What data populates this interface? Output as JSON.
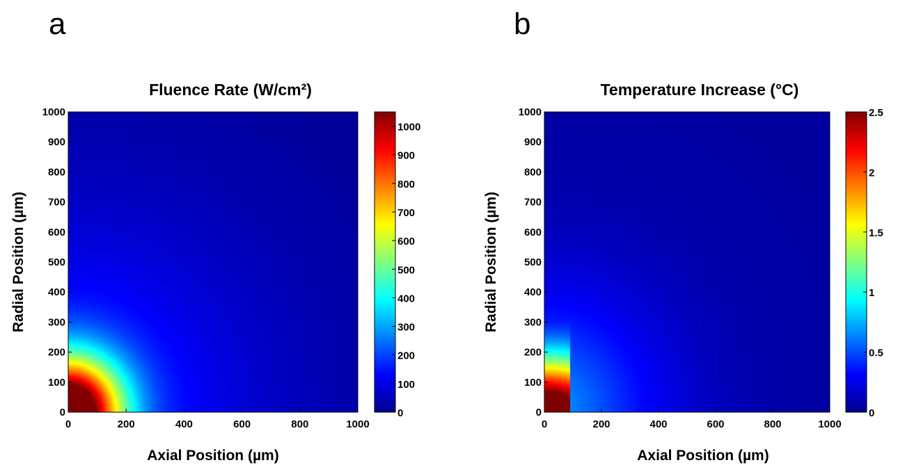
{
  "panels": [
    {
      "letter": "a",
      "chart_data": {
        "type": "heatmap",
        "title": "Fluence Rate (W/cm²)",
        "xlabel": "Axial Position (µm)",
        "ylabel": "Radial Position (µm)",
        "xlim": [
          0,
          1000
        ],
        "ylim": [
          0,
          1000
        ],
        "xticks": [
          0,
          200,
          400,
          600,
          800,
          1000
        ],
        "yticks": [
          0,
          100,
          200,
          300,
          400,
          500,
          600,
          700,
          800,
          900,
          1000
        ],
        "colorbar": {
          "colormap": "jet",
          "range": [
            0,
            1050
          ],
          "ticks": [
            0,
            100,
            200,
            300,
            400,
            500,
            600,
            700,
            800,
            900,
            1000
          ]
        },
        "peak": {
          "x": 0,
          "y": 0,
          "value": 1050
        },
        "field": "radial decay from origin",
        "samples": [
          {
            "x": 0,
            "y": 0,
            "value": 1050
          },
          {
            "x": 100,
            "y": 100,
            "value": 800
          },
          {
            "x": 0,
            "y": 250,
            "value": 400
          },
          {
            "x": 250,
            "y": 0,
            "value": 400
          },
          {
            "x": 400,
            "y": 0,
            "value": 200
          },
          {
            "x": 600,
            "y": 0,
            "value": 120
          },
          {
            "x": 0,
            "y": 500,
            "value": 150
          },
          {
            "x": 1000,
            "y": 1000,
            "value": 10
          }
        ]
      }
    },
    {
      "letter": "b",
      "chart_data": {
        "type": "heatmap",
        "title": "Temperature Increase (°C)",
        "xlabel": "Axial Position (µm)",
        "ylabel": "Radial Position (µm)",
        "xlim": [
          0,
          1000
        ],
        "ylim": [
          0,
          1000
        ],
        "xticks": [
          0,
          200,
          400,
          600,
          800,
          1000
        ],
        "yticks": [
          0,
          100,
          200,
          300,
          400,
          500,
          600,
          700,
          800,
          900,
          1000
        ],
        "colorbar": {
          "colormap": "jet",
          "range": [
            0,
            2.5
          ],
          "ticks": [
            0,
            0.5,
            1,
            1.5,
            2,
            2.5
          ]
        },
        "peak": {
          "x": 0,
          "y": 0,
          "value": 2.5
        },
        "field": "hot region at x < 90 µm near origin, weaker decay beyond",
        "samples": [
          {
            "x": 0,
            "y": 0,
            "value": 2.5
          },
          {
            "x": 50,
            "y": 100,
            "value": 2.0
          },
          {
            "x": 0,
            "y": 300,
            "value": 0.9
          },
          {
            "x": 100,
            "y": 0,
            "value": 0.55
          },
          {
            "x": 300,
            "y": 300,
            "value": 0.35
          },
          {
            "x": 1000,
            "y": 1000,
            "value": 0.02
          }
        ]
      }
    }
  ]
}
